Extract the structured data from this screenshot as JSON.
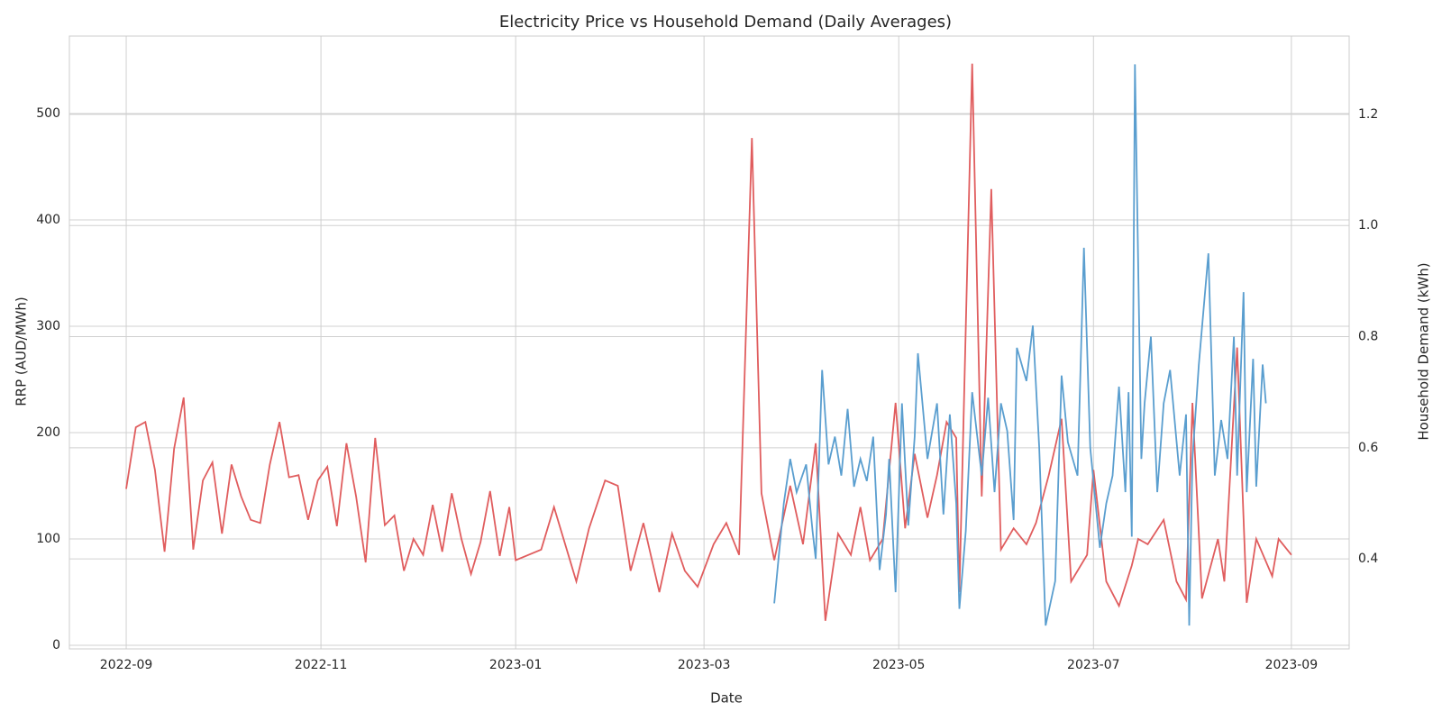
{
  "chart_data": {
    "type": "line",
    "title": "Electricity Price vs Household Demand (Daily Averages)",
    "x_label": "Date",
    "y_label": "RRP (AUD/MWh)",
    "y2_label": "Household Demand (kWh)",
    "y_color": "#d62728",
    "y2_color": "#1f77b4",
    "grid": true,
    "xlim": [
      -17.8,
      383.1
    ],
    "xticks": [
      {
        "value": 0,
        "label": "2022-09"
      },
      {
        "value": 61,
        "label": "2022-11"
      },
      {
        "value": 122,
        "label": "2023-01"
      },
      {
        "value": 181,
        "label": "2023-03"
      },
      {
        "value": 242,
        "label": "2023-05"
      },
      {
        "value": 303,
        "label": "2023-07"
      },
      {
        "value": 365,
        "label": "2023-09"
      }
    ],
    "ylim": [
      -3.4,
      572.9
    ],
    "yticks": [
      0,
      100,
      200,
      300,
      400,
      500
    ],
    "y2lim": [
      0.238,
      1.341
    ],
    "y2ticks": [
      0.4,
      0.6,
      0.8,
      {
        "value": 1.0,
        "label": "1.0"
      },
      1.2
    ],
    "series": [
      {
        "color": "#e05d5e",
        "axis": "y",
        "x": [
          0,
          3,
          6,
          9,
          12,
          15,
          18,
          21,
          24,
          27,
          30,
          33,
          36,
          39,
          42,
          45,
          48,
          51,
          54,
          57,
          60,
          63,
          66,
          69,
          72,
          75,
          78,
          81,
          84,
          87,
          90,
          93,
          96,
          99,
          102,
          105,
          108,
          111,
          114,
          117,
          120,
          122,
          130,
          134,
          141,
          145,
          150,
          154,
          158,
          162,
          167,
          171,
          175,
          179,
          184,
          188,
          192,
          196,
          199,
          203,
          208,
          212,
          216,
          219,
          223,
          227,
          230,
          233,
          237,
          241,
          244,
          247,
          251,
          254,
          257,
          260,
          261,
          265,
          268,
          271,
          274,
          278,
          282,
          285,
          289,
          293,
          296,
          301,
          303,
          307,
          311,
          315,
          317,
          320,
          325,
          329,
          332,
          334,
          337,
          342,
          344,
          348,
          351,
          354,
          359,
          361,
          365
        ],
        "values": [
          147,
          205,
          210,
          165,
          88,
          185,
          233,
          90,
          155,
          172,
          105,
          170,
          140,
          118,
          115,
          170,
          210,
          158,
          160,
          118,
          155,
          168,
          112,
          190,
          140,
          78,
          195,
          113,
          122,
          70,
          100,
          85,
          132,
          88,
          143,
          100,
          67,
          97,
          145,
          84,
          130,
          80,
          90,
          130,
          60,
          110,
          155,
          150,
          70,
          115,
          50,
          105,
          70,
          55,
          95,
          115,
          85,
          477,
          143,
          80,
          150,
          95,
          190,
          23,
          105,
          85,
          130,
          80,
          100,
          228,
          110,
          180,
          120,
          160,
          210,
          195,
          50,
          547,
          140,
          429,
          90,
          110,
          95,
          115,
          160,
          213,
          60,
          85,
          165,
          60,
          37,
          75,
          100,
          95,
          118,
          60,
          43,
          228,
          44,
          100,
          60,
          280,
          40,
          100,
          65,
          100,
          85
        ]
      },
      {
        "color": "#5a9ecf",
        "axis": "y2",
        "x": [
          203,
          206,
          208,
          210,
          213,
          215,
          216,
          218,
          220,
          222,
          224,
          226,
          228,
          230,
          232,
          234,
          236,
          238,
          239,
          241,
          243,
          245,
          247,
          248,
          251,
          254,
          256,
          258,
          260,
          261,
          263,
          265,
          268,
          270,
          272,
          274,
          276,
          278,
          279,
          282,
          284,
          286,
          288,
          291,
          293,
          295,
          298,
          300,
          302,
          305,
          307,
          309,
          311,
          313,
          314,
          315,
          316,
          318,
          319,
          321,
          323,
          325,
          327,
          330,
          332,
          333,
          334,
          336,
          339,
          341,
          343,
          345,
          347,
          348,
          350,
          351,
          353,
          354,
          356,
          357
        ],
        "values": [
          0.32,
          0.5,
          0.58,
          0.52,
          0.57,
          0.45,
          0.4,
          0.74,
          0.57,
          0.62,
          0.55,
          0.67,
          0.53,
          0.58,
          0.54,
          0.62,
          0.38,
          0.48,
          0.58,
          0.34,
          0.68,
          0.46,
          0.62,
          0.77,
          0.58,
          0.68,
          0.48,
          0.66,
          0.5,
          0.31,
          0.45,
          0.7,
          0.55,
          0.69,
          0.52,
          0.68,
          0.63,
          0.47,
          0.78,
          0.72,
          0.82,
          0.6,
          0.28,
          0.36,
          0.73,
          0.61,
          0.55,
          0.96,
          0.6,
          0.42,
          0.5,
          0.55,
          0.71,
          0.52,
          0.7,
          0.44,
          1.29,
          0.58,
          0.68,
          0.8,
          0.52,
          0.68,
          0.74,
          0.55,
          0.66,
          0.28,
          0.58,
          0.75,
          0.95,
          0.55,
          0.65,
          0.58,
          0.8,
          0.55,
          0.88,
          0.52,
          0.76,
          0.53,
          0.75,
          0.68
        ]
      }
    ]
  }
}
